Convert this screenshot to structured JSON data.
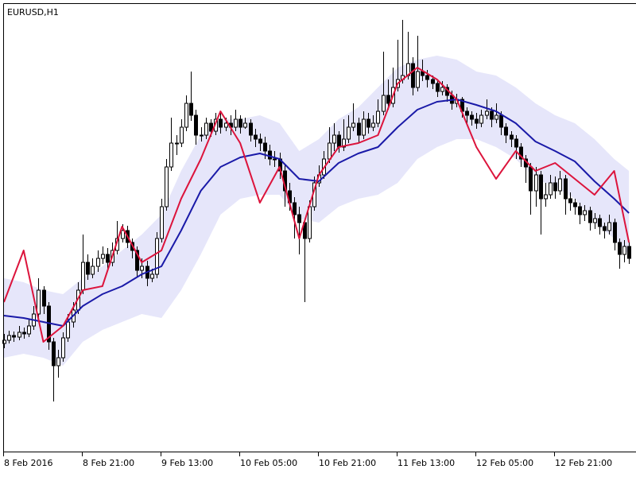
{
  "chart_data": {
    "type": "candlestick",
    "title": "EURUSD,H1",
    "categories": [
      "8 Feb 2016",
      null,
      null,
      null,
      null,
      null,
      null,
      null,
      null,
      null,
      null,
      null,
      null,
      null,
      null,
      null,
      "8 Feb 21:00",
      null,
      null,
      null,
      null,
      null,
      null,
      null,
      null,
      null,
      null,
      null,
      null,
      null,
      null,
      null,
      "9 Feb 13:00",
      null,
      null,
      null,
      null,
      null,
      null,
      null,
      null,
      null,
      null,
      null,
      null,
      null,
      null,
      null,
      "10 Feb 05:00",
      null,
      null,
      null,
      null,
      null,
      null,
      null,
      null,
      null,
      null,
      null,
      null,
      null,
      null,
      null,
      "10 Feb 21:00",
      null,
      null,
      null,
      null,
      null,
      null,
      null,
      null,
      null,
      null,
      null,
      null,
      null,
      null,
      null,
      "11 Feb 13:00",
      null,
      null,
      null,
      null,
      null,
      null,
      null,
      null,
      null,
      null,
      null,
      null,
      null,
      null,
      null,
      "12 Feb 05:00",
      null,
      null,
      null,
      null,
      null,
      null,
      null,
      null,
      null,
      null,
      null,
      null,
      null,
      null,
      null,
      "12 Feb 21:00",
      null,
      null,
      null,
      null,
      null,
      null,
      null,
      null,
      null,
      null,
      null,
      null,
      null,
      null,
      null
    ],
    "open": [
      168,
      172,
      178,
      176,
      182,
      180,
      190,
      205,
      235,
      215,
      170,
      140,
      150,
      175,
      195,
      210,
      235,
      270,
      255,
      265,
      275,
      280,
      270,
      285,
      300,
      310,
      295,
      285,
      260,
      265,
      250,
      255,
      300,
      340,
      390,
      420,
      420,
      440,
      470,
      455,
      430,
      430,
      445,
      435,
      450,
      440,
      445,
      440,
      450,
      440,
      445,
      430,
      425,
      420,
      410,
      400,
      400,
      385,
      360,
      345,
      330,
      320,
      300,
      340,
      370,
      380,
      400,
      420,
      430,
      415,
      425,
      440,
      445,
      430,
      450,
      440,
      445,
      460,
      480,
      470,
      490,
      500,
      505,
      520,
      490,
      510,
      505,
      500,
      495,
      485,
      490,
      480,
      470,
      475,
      460,
      455,
      450,
      445,
      455,
      460,
      450,
      455,
      440,
      430,
      425,
      415,
      400,
      390,
      360,
      380,
      350,
      355,
      370,
      360,
      375,
      350,
      345,
      340,
      330,
      335,
      320,
      325,
      315,
      310,
      320,
      295,
      280,
      290
    ],
    "high": [
      180,
      184,
      183,
      190,
      188,
      198,
      215,
      250,
      240,
      220,
      175,
      160,
      182,
      205,
      220,
      245,
      305,
      280,
      275,
      285,
      290,
      288,
      295,
      322,
      318,
      316,
      300,
      290,
      275,
      272,
      262,
      308,
      350,
      400,
      452,
      430,
      450,
      480,
      510,
      462,
      440,
      452,
      450,
      458,
      460,
      452,
      455,
      462,
      455,
      452,
      450,
      438,
      432,
      428,
      418,
      410,
      408,
      392,
      370,
      352,
      340,
      325,
      348,
      378,
      392,
      410,
      440,
      445,
      435,
      450,
      455,
      470,
      452,
      460,
      458,
      455,
      475,
      535,
      500,
      515,
      550,
      575,
      560,
      528,
      555,
      525,
      512,
      505,
      500,
      498,
      494,
      486,
      482,
      478,
      465,
      460,
      458,
      462,
      475,
      465,
      470,
      460,
      445,
      435,
      430,
      420,
      405,
      395,
      390,
      385,
      370,
      380,
      378,
      385,
      380,
      358,
      350,
      345,
      342,
      340,
      332,
      330,
      320,
      330,
      325,
      300,
      298,
      295
    ],
    "low": [
      162,
      168,
      170,
      172,
      174,
      176,
      185,
      200,
      205,
      160,
      95,
      125,
      145,
      170,
      188,
      205,
      230,
      248,
      250,
      258,
      268,
      262,
      265,
      280,
      295,
      288,
      275,
      252,
      250,
      240,
      245,
      250,
      295,
      335,
      385,
      405,
      415,
      435,
      448,
      418,
      422,
      425,
      428,
      430,
      432,
      435,
      430,
      435,
      432,
      438,
      422,
      415,
      410,
      400,
      392,
      390,
      375,
      340,
      335,
      300,
      280,
      220,
      295,
      335,
      365,
      375,
      395,
      410,
      408,
      410,
      420,
      435,
      420,
      425,
      432,
      435,
      440,
      455,
      462,
      465,
      485,
      495,
      500,
      480,
      485,
      498,
      490,
      488,
      478,
      480,
      472,
      462,
      465,
      452,
      445,
      442,
      438,
      440,
      450,
      440,
      445,
      430,
      420,
      415,
      400,
      390,
      370,
      330,
      340,
      305,
      340,
      350,
      350,
      355,
      330,
      335,
      330,
      318,
      322,
      310,
      312,
      305,
      300,
      305,
      285,
      262,
      270,
      268
    ],
    "close": [
      172,
      178,
      176,
      182,
      180,
      190,
      205,
      235,
      215,
      170,
      140,
      150,
      175,
      195,
      210,
      235,
      270,
      255,
      265,
      275,
      280,
      270,
      285,
      300,
      310,
      295,
      285,
      260,
      265,
      250,
      255,
      300,
      340,
      390,
      420,
      420,
      440,
      470,
      455,
      430,
      430,
      445,
      435,
      450,
      440,
      445,
      440,
      450,
      440,
      445,
      430,
      425,
      420,
      410,
      400,
      400,
      385,
      360,
      345,
      330,
      320,
      300,
      340,
      370,
      380,
      400,
      420,
      430,
      415,
      425,
      440,
      445,
      430,
      450,
      440,
      445,
      460,
      480,
      470,
      490,
      500,
      505,
      520,
      490,
      510,
      505,
      500,
      495,
      485,
      490,
      480,
      470,
      475,
      460,
      455,
      450,
      445,
      455,
      460,
      450,
      455,
      440,
      430,
      425,
      415,
      400,
      390,
      360,
      380,
      350,
      355,
      370,
      360,
      375,
      350,
      345,
      340,
      330,
      335,
      320,
      325,
      315,
      310,
      320,
      295,
      280,
      290,
      275
    ],
    "bull_color": "#ffffff",
    "bear_color": "#000000",
    "ylim": [
      32,
      596
    ],
    "line_x": [
      0,
      4,
      8,
      12,
      16,
      20,
      24,
      28,
      32,
      36,
      40,
      44,
      48,
      52,
      56,
      60,
      64,
      68,
      72,
      76,
      80,
      84,
      88,
      92,
      96,
      100,
      104,
      108,
      112,
      116,
      120,
      124,
      127
    ],
    "band": {
      "color": "#e6e6fa",
      "upper": [
        250,
        245,
        235,
        230,
        250,
        265,
        285,
        305,
        330,
        385,
        430,
        450,
        450,
        455,
        445,
        410,
        425,
        450,
        465,
        490,
        515,
        525,
        530,
        525,
        510,
        505,
        490,
        470,
        455,
        445,
        425,
        400,
        385
      ],
      "lower": [
        150,
        155,
        150,
        140,
        170,
        185,
        195,
        205,
        200,
        235,
        280,
        330,
        350,
        355,
        355,
        325,
        320,
        340,
        350,
        355,
        370,
        400,
        415,
        425,
        425,
        415,
        400,
        375,
        365,
        350,
        320,
        300,
        280
      ]
    },
    "lines": [
      {
        "color": "#1a1aa8",
        "values": [
          203,
          200,
          195,
          190,
          215,
          230,
          240,
          255,
          265,
          310,
          360,
          390,
          402,
          407,
          400,
          375,
          372,
          395,
          407,
          415,
          440,
          462,
          472,
          475,
          468,
          460,
          445,
          422,
          410,
          397,
          372,
          350,
          332
        ]
      },
      {
        "color": "#dc143c",
        "values": [
          220,
          285,
          170,
          190,
          235,
          240,
          315,
          270,
          285,
          350,
          400,
          460,
          420,
          345,
          390,
          300,
          380,
          415,
          420,
          430,
          495,
          515,
          500,
          475,
          415,
          375,
          410,
          385,
          395,
          375,
          355,
          385,
          295
        ]
      }
    ]
  }
}
